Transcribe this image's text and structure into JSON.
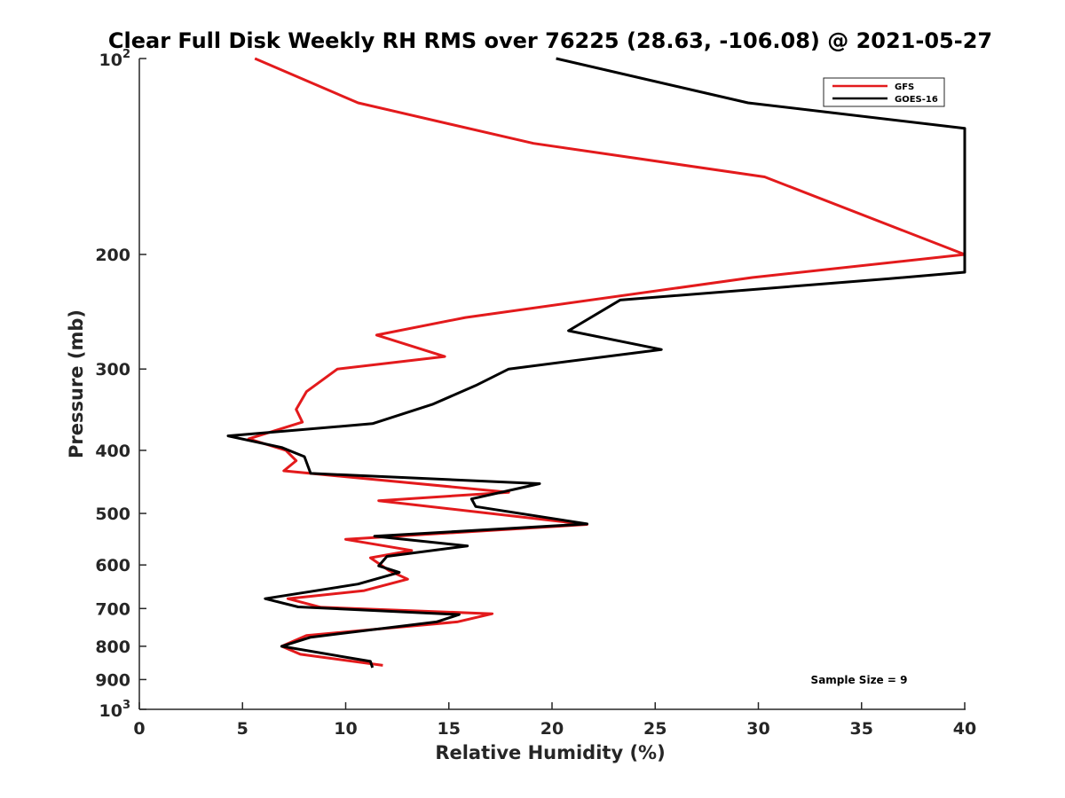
{
  "chart_data": {
    "type": "line",
    "title": "Clear Full Disk Weekly RH RMS over 76225 (28.63, -106.08) @ 2021-05-27",
    "xlabel": "Relative Humidity (%)",
    "ylabel": "Pressure (mb)",
    "xlim": [
      0,
      40
    ],
    "ylim": [
      100,
      1000
    ],
    "y_scale": "log",
    "y_reversed": true,
    "x_ticks": [
      0,
      5,
      10,
      15,
      20,
      25,
      30,
      35,
      40
    ],
    "y_ticks": [
      {
        "value": 100,
        "base": "10",
        "exp": "2"
      },
      {
        "value": 200,
        "label": "200"
      },
      {
        "value": 300,
        "label": "300"
      },
      {
        "value": 400,
        "label": "400"
      },
      {
        "value": 500,
        "label": "500"
      },
      {
        "value": 600,
        "label": "600"
      },
      {
        "value": 700,
        "label": "700"
      },
      {
        "value": 800,
        "label": "800"
      },
      {
        "value": 900,
        "label": "900"
      },
      {
        "value": 1000,
        "base": "10",
        "exp": "3"
      }
    ],
    "legend_position": "top-right",
    "series": [
      {
        "name": "GFS",
        "color": "#e31a1c",
        "points": [
          [
            5.6,
            100
          ],
          [
            10.6,
            117
          ],
          [
            19.1,
            135
          ],
          [
            30.3,
            152
          ],
          [
            40.0,
            200
          ],
          [
            29.7,
            217
          ],
          [
            15.8,
            250
          ],
          [
            11.5,
            266
          ],
          [
            14.8,
            287
          ],
          [
            9.6,
            300
          ],
          [
            8.1,
            325
          ],
          [
            7.6,
            346
          ],
          [
            7.9,
            362
          ],
          [
            5.3,
            384
          ],
          [
            7.1,
            400
          ],
          [
            7.6,
            415
          ],
          [
            7.0,
            430
          ],
          [
            17.9,
            464
          ],
          [
            11.6,
            478
          ],
          [
            21.7,
            520
          ],
          [
            10.0,
            548
          ],
          [
            13.2,
            570
          ],
          [
            11.2,
            585
          ],
          [
            12.1,
            612
          ],
          [
            13.0,
            631
          ],
          [
            10.9,
            657
          ],
          [
            7.2,
            676
          ],
          [
            8.8,
            697
          ],
          [
            17.1,
            713
          ],
          [
            15.4,
            734
          ],
          [
            8.1,
            770
          ],
          [
            6.9,
            800
          ],
          [
            7.8,
            823
          ],
          [
            11.8,
            856
          ]
        ]
      },
      {
        "name": "GOES-16",
        "color": "#000000",
        "points": [
          [
            20.2,
            100
          ],
          [
            29.5,
            117
          ],
          [
            40.0,
            128
          ],
          [
            40.0,
            213
          ],
          [
            36.3,
            218
          ],
          [
            23.3,
            235
          ],
          [
            20.8,
            262
          ],
          [
            25.3,
            280
          ],
          [
            17.9,
            300
          ],
          [
            16.3,
            318
          ],
          [
            14.2,
            340
          ],
          [
            11.3,
            364
          ],
          [
            4.3,
            380
          ],
          [
            6.9,
            396
          ],
          [
            8.0,
            409
          ],
          [
            8.3,
            434
          ],
          [
            19.4,
            450
          ],
          [
            16.1,
            475
          ],
          [
            16.3,
            488
          ],
          [
            21.7,
            519
          ],
          [
            11.4,
            542
          ],
          [
            15.9,
            561
          ],
          [
            12.0,
            582
          ],
          [
            11.6,
            602
          ],
          [
            12.6,
            616
          ],
          [
            10.6,
            642
          ],
          [
            6.1,
            676
          ],
          [
            7.7,
            696
          ],
          [
            15.5,
            715
          ],
          [
            14.4,
            734
          ],
          [
            8.3,
            775
          ],
          [
            6.9,
            800
          ],
          [
            11.2,
            844
          ],
          [
            11.3,
            863
          ]
        ]
      }
    ],
    "annotations": [
      "Sample Size = 9"
    ]
  }
}
